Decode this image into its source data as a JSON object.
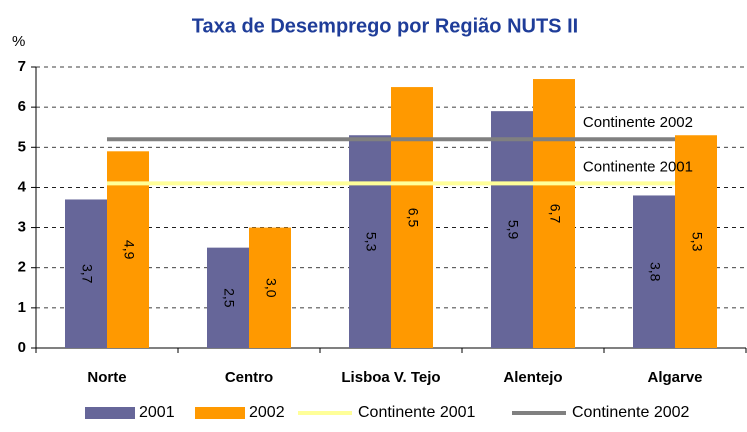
{
  "chart_data": {
    "type": "bar",
    "title": "Taxa de Desemprego por Região NUTS II",
    "y_label": "%",
    "categories": [
      "Norte",
      "Centro",
      "Lisboa V. Tejo",
      "Alentejo",
      "Algarve"
    ],
    "series": [
      {
        "name": "2001",
        "color": "#666699",
        "values": [
          3.7,
          2.5,
          5.3,
          5.9,
          3.8
        ],
        "value_labels": [
          "3,7",
          "2,5",
          "5,3",
          "5,9",
          "3,8"
        ]
      },
      {
        "name": "2002",
        "color": "#ff9900",
        "values": [
          4.9,
          3.0,
          6.5,
          6.7,
          5.3
        ],
        "value_labels": [
          "4,9",
          "3,0",
          "6,5",
          "6,7",
          "5,3"
        ]
      }
    ],
    "reference_lines": [
      {
        "name": "Continente 2001",
        "color": "#ffff99",
        "value": 4.1
      },
      {
        "name": "Continente 2002",
        "color": "#808080",
        "value": 5.2
      }
    ],
    "ylim": [
      0,
      7
    ],
    "yticks": [
      0,
      1,
      2,
      3,
      4,
      5,
      6,
      7
    ],
    "grid": true
  }
}
